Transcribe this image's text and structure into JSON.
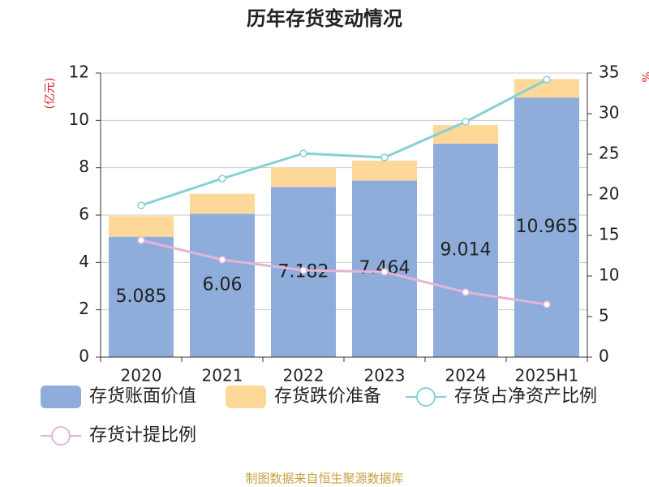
{
  "chart_data": {
    "type": "bar",
    "title": "历年存货变动情况",
    "y_label": "(亿元)",
    "y2_label": "%",
    "categories": [
      "2020",
      "2021",
      "2022",
      "2023",
      "2024",
      "2025H1"
    ],
    "series": [
      {
        "name": "存货账面价值",
        "color": "#8eaddb",
        "type": "bar",
        "values": [
          5.085,
          6.06,
          7.182,
          7.464,
          9.014,
          10.965
        ]
      },
      {
        "name": "存货跌价准备",
        "color": "#fed898",
        "type": "bar",
        "values": [
          0.87,
          0.84,
          0.82,
          0.84,
          0.79,
          0.78
        ]
      },
      {
        "name": "存货占净资产比例",
        "color": "#85d0d5",
        "type": "line",
        "axis": "y2",
        "values": [
          18.7,
          22.0,
          25.1,
          24.6,
          29.0,
          34.2
        ]
      },
      {
        "name": "存货计提比例",
        "color": "#e4b4d6",
        "type": "line",
        "axis": "y2",
        "values": [
          14.4,
          12.0,
          10.7,
          10.5,
          8.0,
          6.5
        ]
      }
    ],
    "label_series": 0,
    "ylim": [
      0,
      12
    ],
    "yticks": [
      0,
      2,
      4,
      6,
      8,
      10,
      12
    ],
    "y2lim": [
      0,
      35
    ],
    "y2ticks": [
      0,
      5,
      10,
      15,
      20,
      25,
      30,
      35
    ],
    "grid": true,
    "source": "制图数据来自恒生聚源数据库"
  }
}
